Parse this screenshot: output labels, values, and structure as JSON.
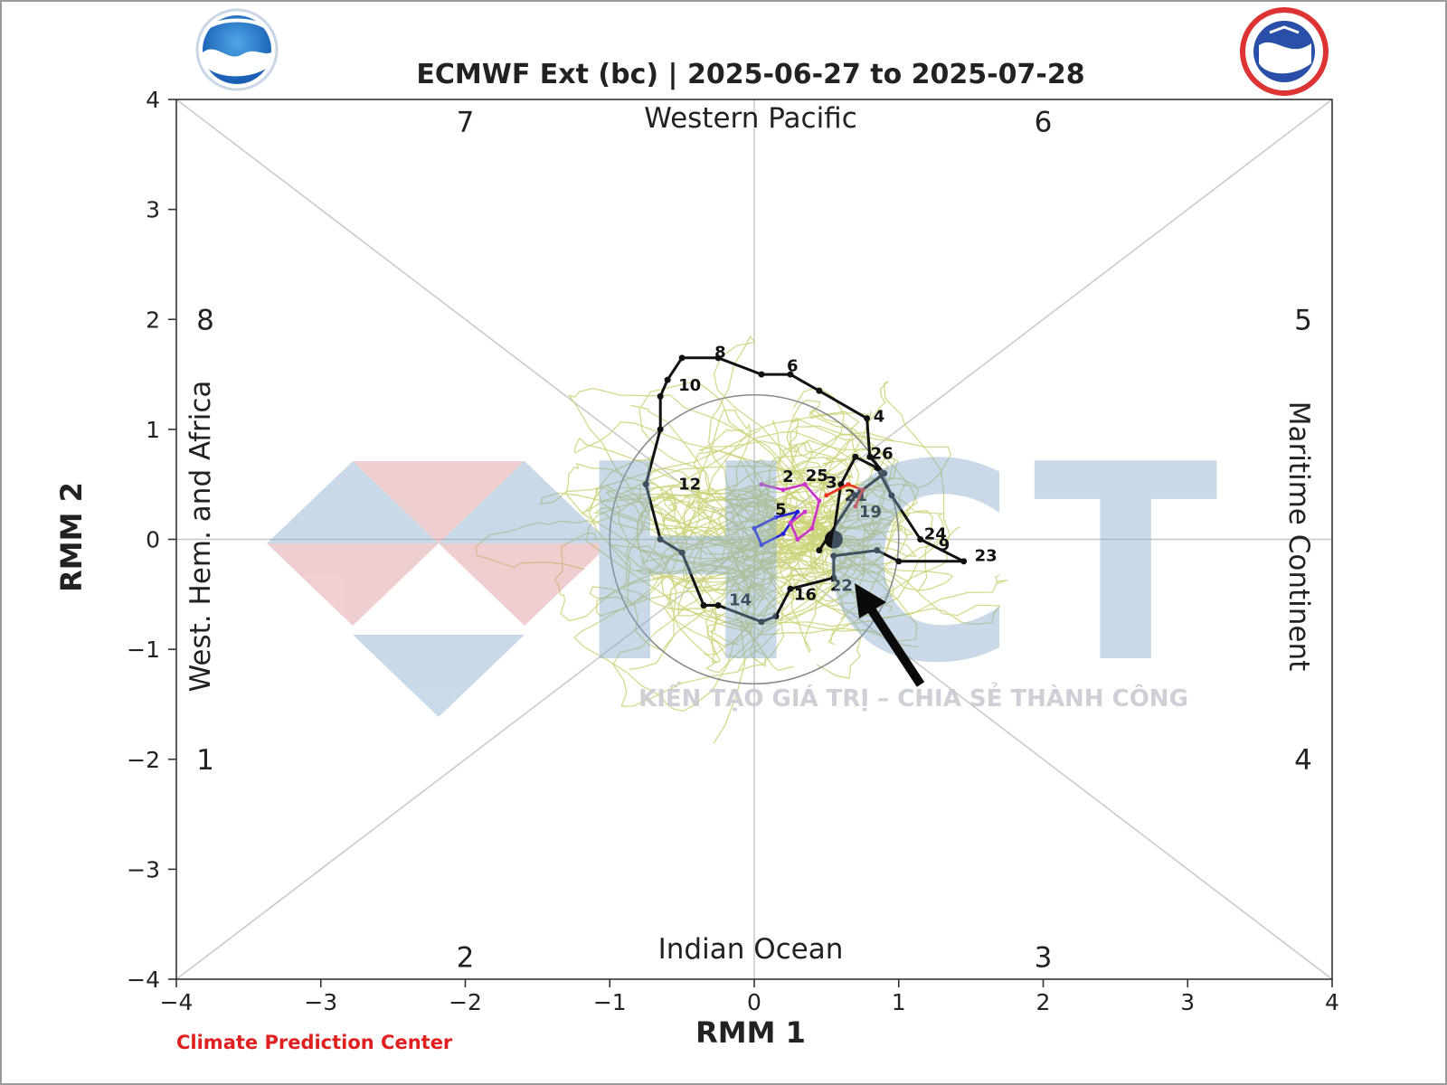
{
  "chart_data": {
    "type": "line",
    "title": "ECMWF Ext (bc) | 2025-06-27 to 2025-07-28",
    "xlabel": "RMM 1",
    "ylabel": "RMM 2",
    "xlim": [
      -4,
      4
    ],
    "ylim": [
      -4,
      4
    ],
    "xticks": [
      "−4",
      "−3",
      "−2",
      "−1",
      "0",
      "1",
      "2",
      "3",
      "4"
    ],
    "yticks": [
      "4",
      "3",
      "2",
      "1",
      "0",
      "−1",
      "−2",
      "−3",
      "−4"
    ],
    "region_labels": {
      "top": "Western Pacific",
      "bottom": "Indian Ocean",
      "left": "West. Hem. and Africa",
      "right": "Maritime Continent"
    },
    "phase_labels": [
      {
        "phase": "7",
        "x": -2.0,
        "y": 3.8
      },
      {
        "phase": "6",
        "x": 2.0,
        "y": 3.8
      },
      {
        "phase": "8",
        "x": -3.8,
        "y": 2.0
      },
      {
        "phase": "5",
        "x": 3.8,
        "y": 2.0
      },
      {
        "phase": "1",
        "x": -3.8,
        "y": -2.0
      },
      {
        "phase": "4",
        "x": 3.8,
        "y": -2.0
      },
      {
        "phase": "2",
        "x": -2.0,
        "y": -3.8
      },
      {
        "phase": "3",
        "x": 2.0,
        "y": -3.8
      }
    ],
    "amplitude_circle_radius": 1,
    "grid": true,
    "series": [
      {
        "color": "#111111",
        "points": [
          [
            0.45,
            -0.1
          ],
          [
            0.7,
            0.4
          ],
          [
            0.9,
            0.6
          ],
          [
            0.8,
            0.75
          ],
          [
            0.78,
            1.1
          ],
          [
            0.45,
            1.35
          ],
          [
            0.25,
            1.5
          ],
          [
            0.05,
            1.5
          ],
          [
            -0.25,
            1.65
          ],
          [
            -0.5,
            1.65
          ],
          [
            -0.6,
            1.45
          ],
          [
            -0.65,
            1.3
          ],
          [
            -0.65,
            1.0
          ],
          [
            -0.75,
            0.5
          ],
          [
            -0.65,
            0.0
          ],
          [
            -0.5,
            -0.12
          ],
          [
            -0.35,
            -0.6
          ],
          [
            -0.25,
            -0.6
          ],
          [
            0.05,
            -0.75
          ],
          [
            0.15,
            -0.7
          ],
          [
            0.25,
            -0.45
          ],
          [
            0.55,
            -0.35
          ],
          [
            0.55,
            -0.15
          ],
          [
            0.85,
            -0.1
          ],
          [
            1.0,
            -0.2
          ],
          [
            1.45,
            -0.2
          ],
          [
            1.15,
            0.0
          ],
          [
            0.95,
            0.4
          ],
          [
            0.85,
            0.65
          ],
          [
            0.7,
            0.75
          ],
          [
            0.6,
            0.5
          ],
          [
            0.55,
            0.05
          ]
        ],
        "labels": [
          {
            "text": "4",
            "x": 0.8,
            "y": 1.12
          },
          {
            "text": "6",
            "x": 0.2,
            "y": 1.58
          },
          {
            "text": "8",
            "x": -0.3,
            "y": 1.7
          },
          {
            "text": "10",
            "x": -0.55,
            "y": 1.4
          },
          {
            "text": "12",
            "x": -0.55,
            "y": 0.5
          },
          {
            "text": "14",
            "x": -0.2,
            "y": -0.55
          },
          {
            "text": "16",
            "x": 0.25,
            "y": -0.5
          },
          {
            "text": "19",
            "x": 0.7,
            "y": 0.25
          },
          {
            "text": "21",
            "x": 0.6,
            "y": 0.4
          },
          {
            "text": "22",
            "x": 0.5,
            "y": -0.42
          },
          {
            "text": "23",
            "x": 1.5,
            "y": -0.15
          },
          {
            "text": "24",
            "x": 1.15,
            "y": 0.05
          },
          {
            "text": "25",
            "x": 0.33,
            "y": 0.58
          },
          {
            "text": "26",
            "x": 0.78,
            "y": 0.78
          },
          {
            "text": "5",
            "x": 0.12,
            "y": 0.27
          },
          {
            "text": "3",
            "x": 0.47,
            "y": 0.52
          },
          {
            "text": "2",
            "x": 0.17,
            "y": 0.57
          },
          {
            "text": "9",
            "x": 1.25,
            "y": -0.05
          }
        ]
      },
      {
        "color": "#2222dd",
        "points": [
          [
            0.0,
            0.1
          ],
          [
            0.15,
            0.2
          ],
          [
            0.3,
            0.25
          ],
          [
            0.2,
            0.05
          ],
          [
            0.05,
            -0.05
          ],
          [
            0.0,
            0.1
          ]
        ]
      },
      {
        "color": "#cc33cc",
        "points": [
          [
            0.05,
            0.5
          ],
          [
            0.2,
            0.45
          ],
          [
            0.35,
            0.5
          ],
          [
            0.45,
            0.35
          ],
          [
            0.4,
            0.1
          ],
          [
            0.3,
            0.0
          ],
          [
            0.25,
            0.15
          ],
          [
            0.35,
            0.25
          ]
        ]
      },
      {
        "color": "#ee3322",
        "points": [
          [
            0.5,
            0.4
          ],
          [
            0.65,
            0.5
          ],
          [
            0.75,
            0.45
          ],
          [
            0.7,
            0.3
          ]
        ]
      }
    ],
    "ensemble_color": "#cdd37a"
  },
  "watermark": {
    "letters": "HCT",
    "tagline": "KIẾN TẠO GIÁ TRỊ – CHIA SẺ THÀNH CÔNG"
  },
  "footer": {
    "credit": "Climate Prediction Center"
  },
  "colors": {
    "credit": "#e02020",
    "watermark_blue": "#7fa6c8",
    "watermark_red": "#d98c8c"
  }
}
